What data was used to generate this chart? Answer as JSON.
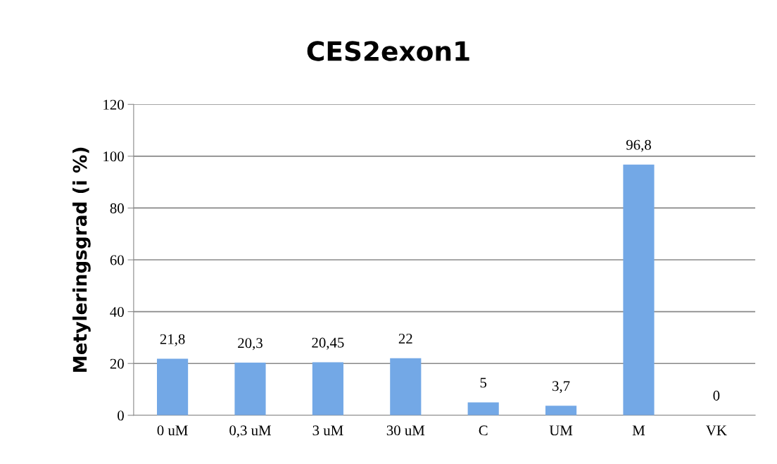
{
  "chart_data": {
    "type": "bar",
    "title": "CES2exon1",
    "ylabel": "Metyleringsgrad (i %)",
    "categories": [
      "0 uM",
      "0,3 uM",
      "3 uM",
      "30 uM",
      "C",
      "UM",
      "M",
      "VK"
    ],
    "values": [
      21.8,
      20.3,
      20.45,
      22,
      5,
      3.7,
      96.8,
      0
    ],
    "value_labels": [
      "21,8",
      "20,3",
      "20,45",
      "22",
      "5",
      "3,7",
      "96,8",
      "0"
    ],
    "color": "#73a8e6",
    "ylim": [
      0,
      120
    ],
    "yticks": [
      0,
      20,
      40,
      60,
      80,
      100,
      120
    ],
    "grid": "y",
    "legend": false
  }
}
